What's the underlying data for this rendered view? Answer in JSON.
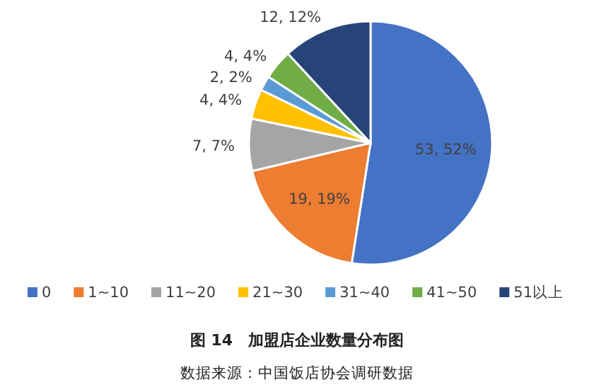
{
  "chart_data": {
    "type": "pie",
    "title": "图 14　加盟店企业数量分布图",
    "categories": [
      "0",
      "1~10",
      "11~20",
      "21~30",
      "31~40",
      "41~50",
      "51以上"
    ],
    "values": [
      53,
      19,
      7,
      4,
      2,
      4,
      12
    ],
    "colors": [
      "#4472c4",
      "#ed7d31",
      "#a5a5a5",
      "#ffc000",
      "#5b9bd5",
      "#70ad47",
      "#264478"
    ],
    "value_labels": [
      "53, 52%",
      "19, 19%",
      "7, 7%",
      "4, 4%",
      "2, 2%",
      "4, 4%",
      "12, 12%"
    ],
    "legend": "bottom",
    "annotations": [
      "数据来源：中国饭店协会调研数据"
    ]
  }
}
